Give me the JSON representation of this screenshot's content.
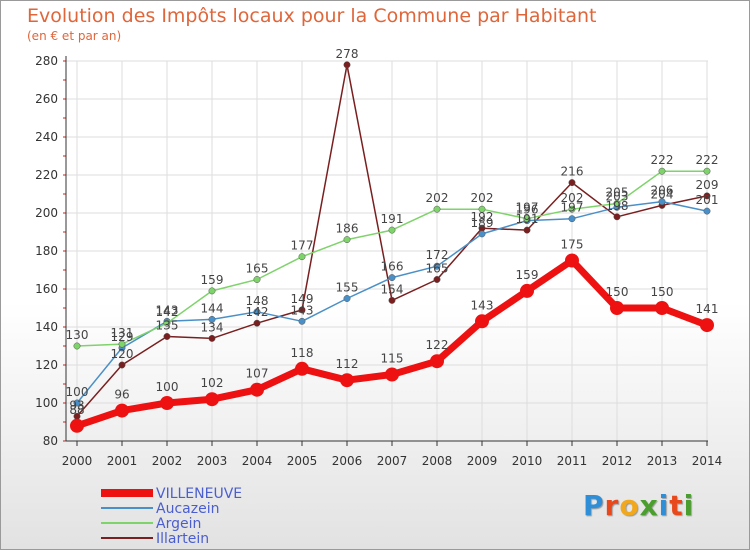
{
  "header": {
    "title": "Evolution des Impôts locaux pour la Commune par Habitant",
    "subtitle": "(en € et par an)"
  },
  "logo": {
    "text": "Proxiti",
    "letters": [
      "P",
      "r",
      "o",
      "x",
      "i",
      "t",
      "i"
    ],
    "colors": [
      "#2e8fd8",
      "#e8491c",
      "#f2a81d",
      "#4a9e2e",
      "#2e8fd8",
      "#e8491c",
      "#4a9e2e"
    ]
  },
  "chart_data": {
    "type": "line",
    "title": "Evolution des Impôts locaux pour la Commune par Habitant",
    "subtitle": "(en € et par an)",
    "xlabel": "",
    "ylabel": "",
    "x": [
      2000,
      2001,
      2002,
      2003,
      2004,
      2005,
      2006,
      2007,
      2008,
      2009,
      2010,
      2011,
      2012,
      2013,
      2014
    ],
    "ylim": [
      80,
      280
    ],
    "yticks": [
      80,
      100,
      120,
      140,
      160,
      180,
      200,
      220,
      240,
      260,
      280
    ],
    "grid": true,
    "legend_position": "bottom-left",
    "series": [
      {
        "name": "Illartein",
        "color": "#7a1f1f",
        "values": [
          93,
          120,
          135,
          134,
          142,
          149,
          278,
          154,
          165,
          192,
          191,
          216,
          198,
          204,
          209
        ],
        "labels": [
          "93",
          "120",
          "135",
          "134",
          "142",
          "149",
          "278",
          "154",
          "165",
          "192",
          "191",
          "216",
          "198",
          "204",
          "209"
        ]
      },
      {
        "name": "Aucazein",
        "color": "#4a90c8",
        "values": [
          100,
          129,
          143,
          144,
          148,
          143,
          155,
          166,
          172,
          189,
          196,
          197,
          203,
          206,
          201
        ],
        "labels": [
          "100",
          "129",
          "143",
          "144",
          "148",
          "143",
          "155",
          "166",
          "172",
          "189",
          "196",
          "197",
          "203",
          "206",
          "201"
        ]
      },
      {
        "name": "Argein",
        "color": "#7ed36a",
        "values": [
          130,
          131,
          142,
          159,
          165,
          177,
          186,
          191,
          202,
          202,
          197,
          202,
          205,
          222,
          222
        ],
        "labels": [
          "130",
          "131",
          "142",
          "159",
          "165",
          "177",
          "186",
          "191",
          "202",
          "202",
          "197",
          "202",
          "205",
          "222",
          "222"
        ]
      },
      {
        "name": "VILLENEUVE",
        "color": "#ee1111",
        "values": [
          88,
          96,
          100,
          102,
          107,
          118,
          112,
          115,
          122,
          143,
          159,
          175,
          150,
          150,
          141
        ],
        "labels": [
          "88",
          "96",
          "100",
          "102",
          "107",
          "118",
          "112",
          "115",
          "122",
          "143",
          "159",
          "175",
          "150",
          "150",
          "141"
        ]
      }
    ]
  }
}
